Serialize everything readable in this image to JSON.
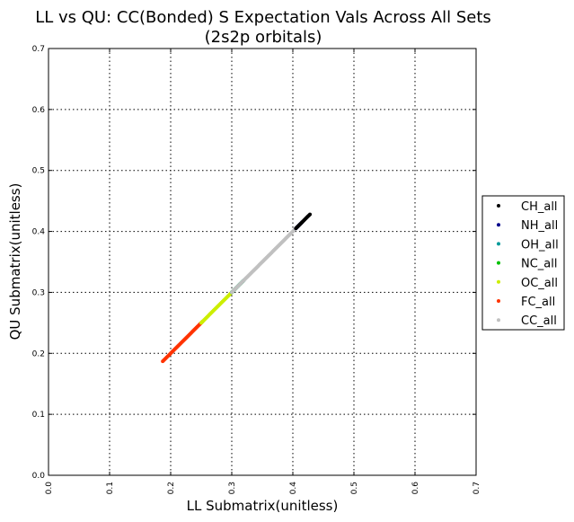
{
  "chart_data": {
    "type": "scatter",
    "title": "LL vs QU: CC(Bonded) S Expectation Vals Across All Sets",
    "subtitle": "(2s2p orbitals)",
    "xlabel": "LL Submatrix(unitless)",
    "ylabel": "QU Submatrix(unitless)",
    "xlim": [
      0.0,
      0.7
    ],
    "ylim": [
      0.0,
      0.7
    ],
    "xticks": [
      "0.0",
      "0.1",
      "0.2",
      "0.3",
      "0.4",
      "0.5",
      "0.6",
      "0.7"
    ],
    "yticks": [
      "0.0",
      "0.1",
      "0.2",
      "0.3",
      "0.4",
      "0.5",
      "0.6",
      "0.7"
    ],
    "grid": true,
    "legend_position": "right",
    "series": [
      {
        "name": "CH_all",
        "color": "#000000",
        "x_range": [
          0.405,
          0.428
        ],
        "y_range": [
          0.405,
          0.428
        ]
      },
      {
        "name": "NH_all",
        "color": "#00008b",
        "x_range": [
          0.405,
          0.415
        ],
        "y_range": [
          0.405,
          0.415
        ]
      },
      {
        "name": "OH_all",
        "color": "#009999",
        "x_range": [
          0.3,
          0.32
        ],
        "y_range": [
          0.3,
          0.32
        ]
      },
      {
        "name": "NC_all",
        "color": "#00c000",
        "x_range": [
          0.3,
          0.318
        ],
        "y_range": [
          0.3,
          0.318
        ]
      },
      {
        "name": "OC_all",
        "color": "#ccee00",
        "x_range": [
          0.25,
          0.305
        ],
        "y_range": [
          0.25,
          0.305
        ]
      },
      {
        "name": "FC_all",
        "color": "#ff3300",
        "x_range": [
          0.187,
          0.252
        ],
        "y_range": [
          0.187,
          0.252
        ]
      },
      {
        "name": "CC_all",
        "color": "#c0c0c0",
        "x_range": [
          0.3,
          0.412
        ],
        "y_range": [
          0.3,
          0.412
        ]
      }
    ]
  }
}
